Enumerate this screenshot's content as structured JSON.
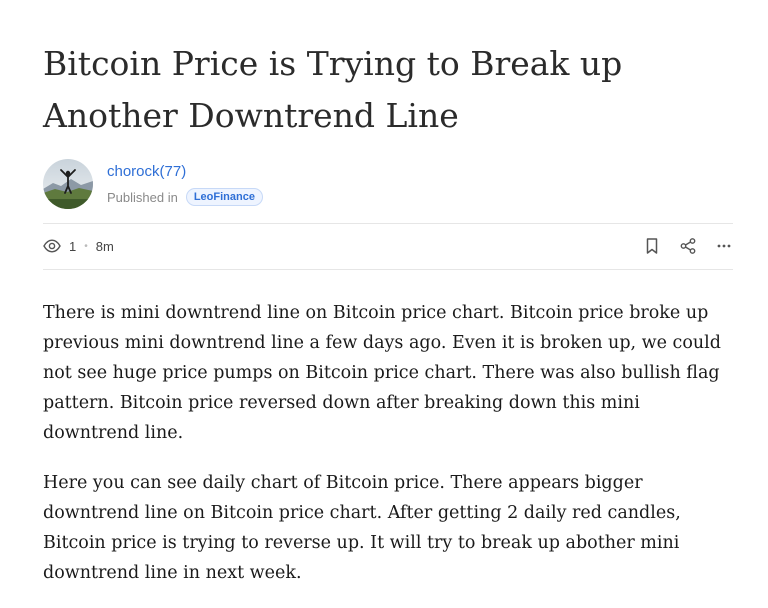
{
  "article": {
    "title": "Bitcoin Price is Trying to Break up Another Downtrend Line",
    "author": {
      "name": "chorock",
      "reputation": "(77)",
      "published_in_label": "Published in",
      "community": "LeoFinance"
    },
    "stats": {
      "views": "1",
      "read_time": "8m"
    },
    "paragraphs": [
      "There is mini downtrend line on Bitcoin price chart. Bitcoin price broke up previous mini downtrend line a few days ago. Even it is broken up, we could not see huge price pumps on Bitcoin price chart. There was also bullish flag pattern. Bitcoin price reversed down after breaking down this mini downtrend line.",
      "Here you can see daily chart of Bitcoin price. There appears bigger downtrend line on Bitcoin price chart. After getting 2 daily red candles, Bitcoin price is trying to reverse up. It will try to break up abother mini downtrend line in next week."
    ]
  },
  "icons": {
    "views": "eye-icon",
    "bookmark": "bookmark-icon",
    "share": "share-icon",
    "more": "more-icon"
  }
}
